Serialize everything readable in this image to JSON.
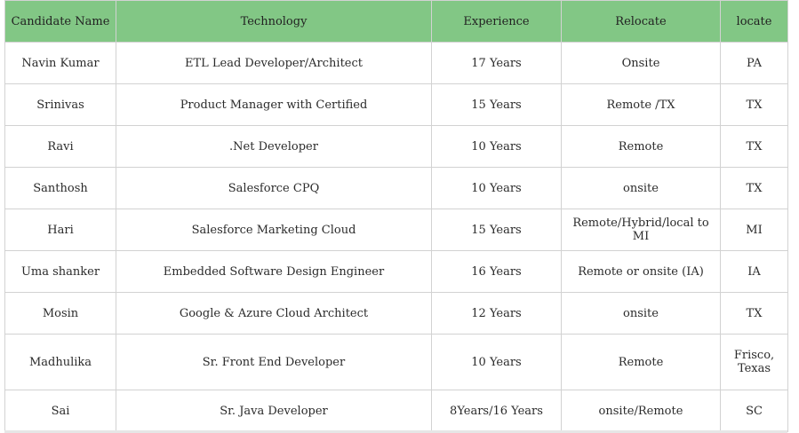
{
  "table": {
    "headers": {
      "name": "Candidate Name",
      "technology": "Technology",
      "experience": "Experience",
      "relocate": "Relocate",
      "locate": "locate"
    },
    "rows": [
      {
        "name": "Navin Kumar",
        "technology": "ETL Lead Developer/Architect",
        "experience": "17 Years",
        "relocate": "Onsite",
        "locate": "PA"
      },
      {
        "name": "Srinivas",
        "technology": "Product Manager with Certified",
        "experience": "15 Years",
        "relocate": "Remote /TX",
        "locate": "TX"
      },
      {
        "name": "Ravi",
        "technology": ".Net Developer",
        "experience": "10 Years",
        "relocate": "Remote",
        "locate": "TX"
      },
      {
        "name": "Santhosh",
        "technology": "Salesforce CPQ",
        "experience": "10 Years",
        "relocate": "onsite",
        "locate": "TX"
      },
      {
        "name": "Hari",
        "technology": "Salesforce Marketing Cloud",
        "experience": "15 Years",
        "relocate": "Remote/Hybrid/local to MI",
        "locate": "MI"
      },
      {
        "name": "Uma shanker",
        "technology": "Embedded Software Design Engineer",
        "experience": "16 Years",
        "relocate": "Remote or onsite (IA)",
        "locate": "IA"
      },
      {
        "name": "Mosin",
        "technology": "Google & Azure Cloud Architect",
        "experience": "12 Years",
        "relocate": "onsite",
        "locate": "TX"
      },
      {
        "name": "Madhulika",
        "technology": "Sr. Front End Developer",
        "experience": "10 Years",
        "relocate": "Remote",
        "locate": "Frisco, Texas"
      },
      {
        "name": "Sai",
        "technology": "Sr. Java Developer",
        "experience": "8Years/16 Years",
        "relocate": "onsite/Remote",
        "locate": "SC"
      }
    ]
  },
  "colors": {
    "header_bg": "#82c785",
    "border": "#d2d2d2"
  }
}
